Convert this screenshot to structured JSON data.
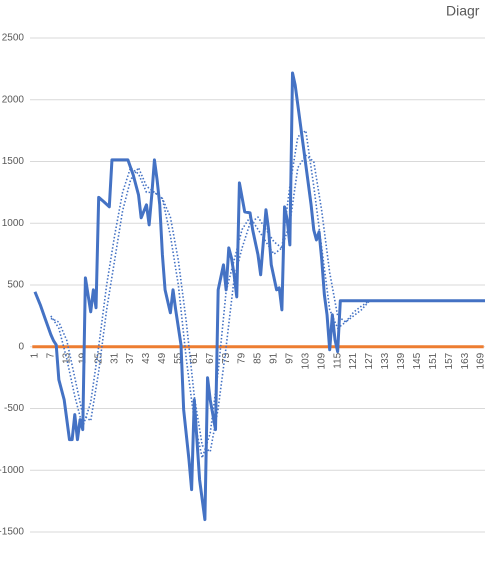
{
  "chart_data": {
    "type": "line",
    "title": "Diagr",
    "xlim": [
      0,
      170
    ],
    "xticks": [
      1,
      7,
      13,
      19,
      25,
      31,
      37,
      43,
      49,
      55,
      61,
      67,
      73,
      79,
      85,
      91,
      97,
      103,
      109,
      115,
      121,
      127,
      133,
      139,
      145,
      151,
      157,
      163,
      169
    ],
    "ylim": [
      -1500,
      2500
    ],
    "yticks": [
      -1500,
      -1000,
      -500,
      0,
      500,
      1000,
      1500,
      2000,
      2500
    ],
    "grid": true,
    "series": [
      {
        "color": "#ed7d31",
        "style": "solid",
        "x": [
          0,
          170
        ],
        "values": [
          0,
          0
        ]
      },
      {
        "color": "#4472c4",
        "style": "dotted",
        "x": [
          7,
          10,
          13,
          16,
          19,
          22,
          25,
          28,
          31,
          34,
          37,
          40,
          43,
          46,
          49,
          52,
          55,
          58,
          61,
          64,
          67,
          70,
          73,
          76,
          79,
          82,
          85,
          88,
          91,
          94,
          97,
          100,
          103,
          106,
          109,
          112,
          115,
          118,
          121,
          124,
          127
        ],
        "values": [
          250,
          150,
          -100,
          -400,
          -650,
          -450,
          0,
          500,
          900,
          1250,
          1450,
          1400,
          1250,
          1250,
          1200,
          900,
          500,
          -100,
          -600,
          -900,
          -700,
          -200,
          450,
          700,
          950,
          1050,
          950,
          850,
          750,
          800,
          1300,
          1700,
          1750,
          1300,
          800,
          300,
          150,
          200,
          280,
          330,
          372
        ]
      },
      {
        "color": "#4472c4",
        "style": "dotted",
        "x": [
          7,
          10,
          13,
          16,
          19,
          22,
          25,
          28,
          31,
          34,
          37,
          40,
          43,
          46,
          49,
          52,
          55,
          58,
          61,
          64,
          67,
          70,
          73,
          76,
          79,
          82,
          85,
          88,
          91,
          94,
          97,
          100,
          103,
          106,
          109,
          112,
          115,
          118,
          121,
          124,
          127
        ],
        "values": [
          230,
          200,
          50,
          -250,
          -550,
          -600,
          -200,
          300,
          700,
          1100,
          1350,
          1450,
          1300,
          1250,
          1200,
          1050,
          700,
          200,
          -400,
          -800,
          -850,
          -500,
          0,
          550,
          800,
          1000,
          1050,
          950,
          850,
          800,
          1000,
          1450,
          1550,
          1500,
          1100,
          600,
          250,
          200,
          250,
          300,
          372
        ]
      },
      {
        "color": "#4472c4",
        "style": "solid",
        "x": [
          1,
          3,
          5,
          7,
          8,
          9,
          10,
          12,
          13,
          14,
          15,
          16,
          17,
          18,
          19,
          20,
          21,
          22,
          23,
          24,
          25,
          27,
          29,
          30,
          36,
          38,
          40,
          41,
          43,
          44,
          45,
          46,
          47,
          48,
          49,
          50,
          52,
          53,
          54,
          56,
          57,
          59,
          60,
          61,
          62,
          63,
          65,
          66,
          67,
          69,
          70,
          72,
          73,
          74,
          75,
          76,
          77,
          78,
          80,
          82,
          83,
          85,
          86,
          88,
          89,
          90,
          92,
          93,
          94,
          95,
          96,
          97,
          98,
          99,
          101,
          102,
          103,
          104,
          105,
          106,
          107,
          108,
          109,
          110,
          111,
          112,
          113,
          114,
          115,
          116,
          171
        ],
        "values": [
          445,
          340,
          218,
          97,
          49,
          16,
          -267,
          -429,
          -590,
          -752,
          -752,
          -550,
          -752,
          -590,
          -671,
          558,
          420,
          283,
          461,
          316,
          1210,
          1173,
          1133,
          1513,
          1513,
          1392,
          1230,
          1044,
          1149,
          987,
          1230,
          1513,
          1351,
          1149,
          744,
          461,
          275,
          461,
          299,
          16,
          -510,
          -914,
          -1157,
          -429,
          -752,
          -1076,
          -1400,
          -251,
          -429,
          -671,
          461,
          663,
          461,
          801,
          720,
          583,
          404,
          1327,
          1092,
          1084,
          946,
          744,
          583,
          1109,
          946,
          663,
          461,
          477,
          299,
          1133,
          1028,
          825,
          2217,
          2119,
          1796,
          1634,
          1473,
          1311,
          1149,
          946,
          865,
          930,
          706,
          420,
          259,
          -24,
          259,
          57,
          -40,
          372,
          372
        ]
      }
    ]
  }
}
